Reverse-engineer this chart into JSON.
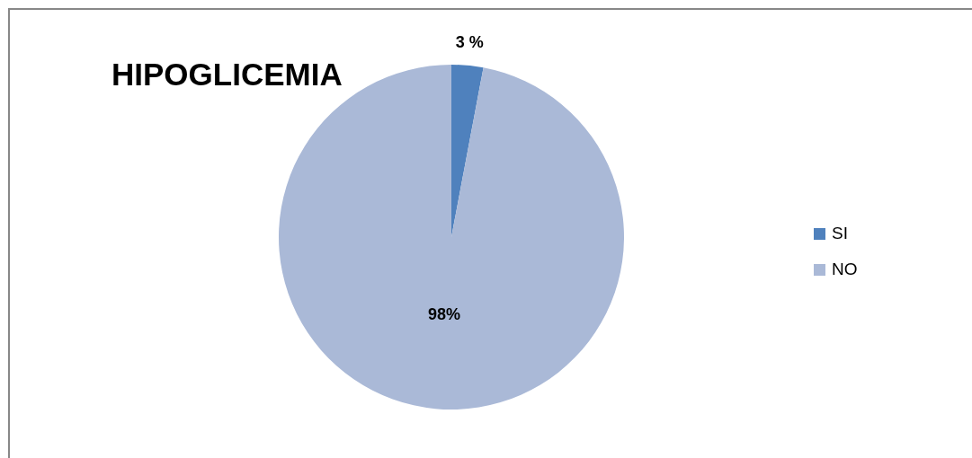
{
  "chart_data": {
    "type": "pie",
    "title": "HIPOGLICEMIA",
    "categories": [
      "SI",
      "NO"
    ],
    "values": [
      3,
      98
    ],
    "colors": [
      "#4f81bd",
      "#aab9d7"
    ],
    "value_labels": [
      "3 %",
      "98%"
    ],
    "legend": "right"
  }
}
